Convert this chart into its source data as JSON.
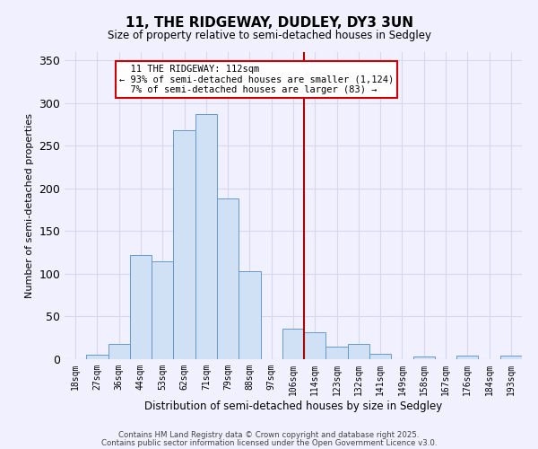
{
  "title": "11, THE RIDGEWAY, DUDLEY, DY3 3UN",
  "subtitle": "Size of property relative to semi-detached houses in Sedgley",
  "xlabel": "Distribution of semi-detached houses by size in Sedgley",
  "ylabel": "Number of semi-detached properties",
  "bar_labels": [
    "18sqm",
    "27sqm",
    "36sqm",
    "44sqm",
    "53sqm",
    "62sqm",
    "71sqm",
    "79sqm",
    "88sqm",
    "97sqm",
    "106sqm",
    "114sqm",
    "123sqm",
    "132sqm",
    "141sqm",
    "149sqm",
    "158sqm",
    "167sqm",
    "176sqm",
    "184sqm",
    "193sqm"
  ],
  "bar_values": [
    0,
    5,
    18,
    122,
    115,
    268,
    287,
    188,
    103,
    0,
    36,
    32,
    15,
    18,
    6,
    0,
    3,
    0,
    4,
    0,
    4
  ],
  "bar_color": "#d0e0f5",
  "bar_edge_color": "#6699cc",
  "ylim": [
    0,
    360
  ],
  "yticks": [
    0,
    50,
    100,
    150,
    200,
    250,
    300,
    350
  ],
  "annotation_line1": "11 THE RIDGEWAY: 112sqm",
  "annotation_line2": "← 93% of semi-detached houses are smaller (1,124)",
  "annotation_line3": "7% of semi-detached houses are larger (83) →",
  "footer1": "Contains HM Land Registry data © Crown copyright and database right 2025.",
  "footer2": "Contains public sector information licensed under the Open Government Licence v3.0.",
  "background_color": "#f0f0ff",
  "grid_color": "#d8d8e8",
  "annotation_box_color": "#ffffff",
  "annotation_box_edge": "#cc0000",
  "vline_color": "#aa0000",
  "vline_x_position": 10.5
}
